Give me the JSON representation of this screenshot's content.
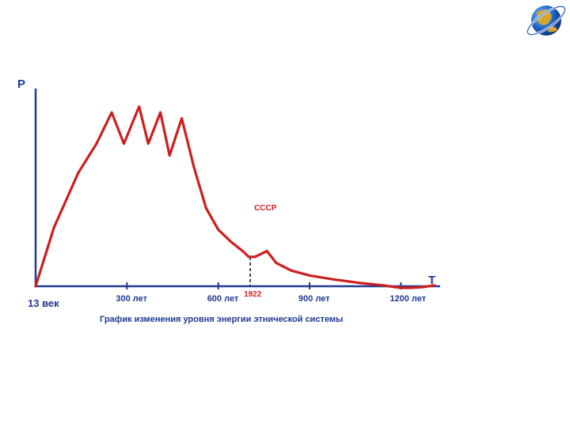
{
  "chart_data": {
    "type": "line",
    "title": "",
    "caption": "График изменения уровня энергии этнической системы",
    "ylabel": "P",
    "xlabel": "T",
    "xlim": [
      -60,
      1340
    ],
    "ylim": [
      -0.1,
      10.8
    ],
    "x_tick_labels": [
      {
        "x": 0,
        "label": "13 век"
      },
      {
        "x": 300,
        "label": "300 лет"
      },
      {
        "x": 600,
        "label": "600 лет"
      },
      {
        "x": 900,
        "label": "900 лет"
      },
      {
        "x": 1200,
        "label": "1200 лет"
      }
    ],
    "annotations": [
      {
        "x": 705,
        "label": "1922",
        "type": "vertical-dashed"
      },
      {
        "x": 770,
        "label": "СССР",
        "type": "text"
      }
    ],
    "series": [
      {
        "color": "#cc1f1f",
        "x": [
          0,
          60,
          140,
          200,
          250,
          290,
          340,
          370,
          410,
          440,
          480,
          520,
          560,
          600,
          640,
          680,
          700,
          720,
          760,
          790,
          840,
          900,
          980,
          1060,
          1140,
          1200,
          1230,
          1270,
          1310
        ],
        "y": [
          0,
          3.0,
          5.8,
          7.3,
          8.9,
          7.3,
          9.2,
          7.3,
          8.9,
          6.7,
          8.6,
          6.1,
          4.0,
          2.9,
          2.3,
          1.8,
          1.5,
          1.5,
          1.8,
          1.2,
          0.8,
          0.55,
          0.35,
          0.18,
          0.05,
          -0.08,
          -0.08,
          -0.05,
          0.05
        ]
      }
    ],
    "grid": false,
    "legend": "none"
  },
  "logo": {
    "icon": "globe-logo-icon"
  }
}
